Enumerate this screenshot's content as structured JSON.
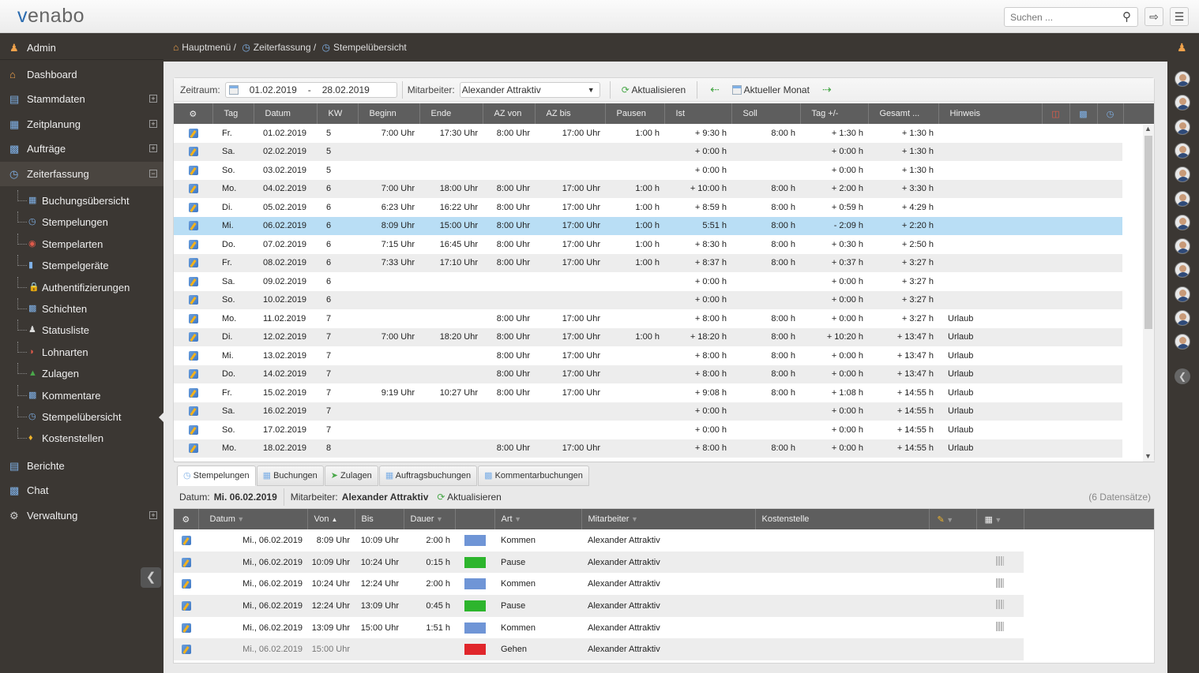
{
  "app": {
    "logo": "venabo",
    "search_placeholder": "Suchen ..."
  },
  "sidebar": {
    "user": "Admin",
    "items": [
      {
        "label": "Dashboard",
        "icon": "home-icon",
        "expandable": false
      },
      {
        "label": "Stammdaten",
        "icon": "database-icon",
        "expandable": true
      },
      {
        "label": "Zeitplanung",
        "icon": "calendar-icon",
        "expandable": true
      },
      {
        "label": "Aufträge",
        "icon": "orders-icon",
        "expandable": true
      },
      {
        "label": "Zeiterfassung",
        "icon": "clock-icon",
        "expandable": true,
        "expanded": true
      }
    ],
    "sub_items": [
      {
        "label": "Buchungsübersicht",
        "icon": "table-icon"
      },
      {
        "label": "Stempelungen",
        "icon": "clock-icon"
      },
      {
        "label": "Stempelarten",
        "icon": "stamp-icon"
      },
      {
        "label": "Stempelgeräte",
        "icon": "device-icon"
      },
      {
        "label": "Authentifizierungen",
        "icon": "lock-icon"
      },
      {
        "label": "Schichten",
        "icon": "shift-icon"
      },
      {
        "label": "Statusliste",
        "icon": "person-icon"
      },
      {
        "label": "Lohnarten",
        "icon": "wage-icon"
      },
      {
        "label": "Zulagen",
        "icon": "bonus-icon"
      },
      {
        "label": "Kommentare",
        "icon": "comment-icon"
      },
      {
        "label": "Stempelübersicht",
        "icon": "clock-icon",
        "active": true
      },
      {
        "label": "Kostenstellen",
        "icon": "cost-center-icon"
      }
    ],
    "bottom_items": [
      {
        "label": "Berichte",
        "icon": "report-icon",
        "expandable": false
      },
      {
        "label": "Chat",
        "icon": "chat-icon",
        "expandable": false
      },
      {
        "label": "Verwaltung",
        "icon": "gear-icon",
        "expandable": true
      }
    ]
  },
  "breadcrumb": [
    "Hauptmenü /",
    "Zeiterfassung /",
    "Stempelübersicht"
  ],
  "toolbar": {
    "period_label": "Zeitraum:",
    "date_from": "01.02.2019",
    "date_sep": "-",
    "date_to": "28.02.2019",
    "employee_label": "Mitarbeiter:",
    "employee": "Alexander Attraktiv",
    "refresh": "Aktualisieren",
    "current_month": "Aktueller Monat"
  },
  "main_table": {
    "columns": [
      "Tag",
      "Datum",
      "KW",
      "Beginn",
      "Ende",
      "AZ von",
      "AZ bis",
      "Pausen",
      "Ist",
      "Soll",
      "Tag +/-",
      "Gesamt ...",
      "Hinweis"
    ],
    "rows": [
      [
        "Fr.",
        "01.02.2019",
        "5",
        "7:00 Uhr",
        "17:30 Uhr",
        "8:00 Uhr",
        "17:00 Uhr",
        "1:00 h",
        "+ 9:30 h",
        "8:00 h",
        "+ 1:30 h",
        "+ 1:30 h",
        ""
      ],
      [
        "Sa.",
        "02.02.2019",
        "5",
        "",
        "",
        "",
        "",
        "",
        "+ 0:00 h",
        "",
        "+ 0:00 h",
        "+ 1:30 h",
        ""
      ],
      [
        "So.",
        "03.02.2019",
        "5",
        "",
        "",
        "",
        "",
        "",
        "+ 0:00 h",
        "",
        "+ 0:00 h",
        "+ 1:30 h",
        ""
      ],
      [
        "Mo.",
        "04.02.2019",
        "6",
        "7:00 Uhr",
        "18:00 Uhr",
        "8:00 Uhr",
        "17:00 Uhr",
        "1:00 h",
        "+ 10:00 h",
        "8:00 h",
        "+ 2:00 h",
        "+ 3:30 h",
        ""
      ],
      [
        "Di.",
        "05.02.2019",
        "6",
        "6:23 Uhr",
        "16:22 Uhr",
        "8:00 Uhr",
        "17:00 Uhr",
        "1:00 h",
        "+ 8:59 h",
        "8:00 h",
        "+ 0:59 h",
        "+ 4:29 h",
        ""
      ],
      [
        "Mi.",
        "06.02.2019",
        "6",
        "8:09 Uhr",
        "15:00 Uhr",
        "8:00 Uhr",
        "17:00 Uhr",
        "1:00 h",
        "5:51 h",
        "8:00 h",
        "- 2:09 h",
        "+ 2:20 h",
        ""
      ],
      [
        "Do.",
        "07.02.2019",
        "6",
        "7:15 Uhr",
        "16:45 Uhr",
        "8:00 Uhr",
        "17:00 Uhr",
        "1:00 h",
        "+ 8:30 h",
        "8:00 h",
        "+ 0:30 h",
        "+ 2:50 h",
        ""
      ],
      [
        "Fr.",
        "08.02.2019",
        "6",
        "7:33 Uhr",
        "17:10 Uhr",
        "8:00 Uhr",
        "17:00 Uhr",
        "1:00 h",
        "+ 8:37 h",
        "8:00 h",
        "+ 0:37 h",
        "+ 3:27 h",
        ""
      ],
      [
        "Sa.",
        "09.02.2019",
        "6",
        "",
        "",
        "",
        "",
        "",
        "+ 0:00 h",
        "",
        "+ 0:00 h",
        "+ 3:27 h",
        ""
      ],
      [
        "So.",
        "10.02.2019",
        "6",
        "",
        "",
        "",
        "",
        "",
        "+ 0:00 h",
        "",
        "+ 0:00 h",
        "+ 3:27 h",
        ""
      ],
      [
        "Mo.",
        "11.02.2019",
        "7",
        "",
        "",
        "8:00 Uhr",
        "17:00 Uhr",
        "",
        "+ 8:00 h",
        "8:00 h",
        "+ 0:00 h",
        "+ 3:27 h",
        "Urlaub"
      ],
      [
        "Di.",
        "12.02.2019",
        "7",
        "7:00 Uhr",
        "18:20 Uhr",
        "8:00 Uhr",
        "17:00 Uhr",
        "1:00 h",
        "+ 18:20 h",
        "8:00 h",
        "+ 10:20 h",
        "+ 13:47 h",
        "Urlaub"
      ],
      [
        "Mi.",
        "13.02.2019",
        "7",
        "",
        "",
        "8:00 Uhr",
        "17:00 Uhr",
        "",
        "+ 8:00 h",
        "8:00 h",
        "+ 0:00 h",
        "+ 13:47 h",
        "Urlaub"
      ],
      [
        "Do.",
        "14.02.2019",
        "7",
        "",
        "",
        "8:00 Uhr",
        "17:00 Uhr",
        "",
        "+ 8:00 h",
        "8:00 h",
        "+ 0:00 h",
        "+ 13:47 h",
        "Urlaub"
      ],
      [
        "Fr.",
        "15.02.2019",
        "7",
        "9:19 Uhr",
        "10:27 Uhr",
        "8:00 Uhr",
        "17:00 Uhr",
        "",
        "+ 9:08 h",
        "8:00 h",
        "+ 1:08 h",
        "+ 14:55 h",
        "Urlaub"
      ],
      [
        "Sa.",
        "16.02.2019",
        "7",
        "",
        "",
        "",
        "",
        "",
        "+ 0:00 h",
        "",
        "+ 0:00 h",
        "+ 14:55 h",
        "Urlaub"
      ],
      [
        "So.",
        "17.02.2019",
        "7",
        "",
        "",
        "",
        "",
        "",
        "+ 0:00 h",
        "",
        "+ 0:00 h",
        "+ 14:55 h",
        "Urlaub"
      ],
      [
        "Mo.",
        "18.02.2019",
        "8",
        "",
        "",
        "8:00 Uhr",
        "17:00 Uhr",
        "",
        "+ 8:00 h",
        "8:00 h",
        "+ 0:00 h",
        "+ 14:55 h",
        "Urlaub"
      ]
    ],
    "selected_row": 5
  },
  "tabs": [
    "Stempelungen",
    "Buchungen",
    "Zulagen",
    "Auftragsbuchungen",
    "Kommentarbuchungen"
  ],
  "active_tab": 0,
  "detail": {
    "date_label": "Datum:",
    "date": "Mi. 06.02.2019",
    "employee_label": "Mitarbeiter:",
    "employee": "Alexander Attraktiv",
    "refresh": "Aktualisieren",
    "record_count": "(6 Datensätze)",
    "columns": [
      "Datum",
      "Von",
      "Bis",
      "Dauer",
      "Art",
      "Mitarbeiter",
      "Kostenstelle"
    ],
    "rows": [
      {
        "datum": "Mi., 06.02.2019",
        "von": "8:09 Uhr",
        "bis": "10:09 Uhr",
        "dauer": "2:00 h",
        "color": "#6f95d6",
        "art": "Kommen",
        "mitarbeiter": "Alexander Attraktiv",
        "cost_icon": false
      },
      {
        "datum": "Mi., 06.02.2019",
        "von": "10:09 Uhr",
        "bis": "10:24 Uhr",
        "dauer": "0:15 h",
        "color": "#2db52d",
        "art": "Pause",
        "mitarbeiter": "Alexander Attraktiv",
        "cost_icon": true
      },
      {
        "datum": "Mi., 06.02.2019",
        "von": "10:24 Uhr",
        "bis": "12:24 Uhr",
        "dauer": "2:00 h",
        "color": "#6f95d6",
        "art": "Kommen",
        "mitarbeiter": "Alexander Attraktiv",
        "cost_icon": true
      },
      {
        "datum": "Mi., 06.02.2019",
        "von": "12:24 Uhr",
        "bis": "13:09 Uhr",
        "dauer": "0:45 h",
        "color": "#2db52d",
        "art": "Pause",
        "mitarbeiter": "Alexander Attraktiv",
        "cost_icon": true
      },
      {
        "datum": "Mi., 06.02.2019",
        "von": "13:09 Uhr",
        "bis": "15:00 Uhr",
        "dauer": "1:51 h",
        "color": "#6f95d6",
        "art": "Kommen",
        "mitarbeiter": "Alexander Attraktiv",
        "cost_icon": true
      },
      {
        "datum": "Mi., 06.02.2019",
        "von": "15:00 Uhr",
        "bis": "",
        "dauer": "",
        "color": "#e0262b",
        "art": "Gehen",
        "mitarbeiter": "Alexander Attraktiv",
        "cost_icon": false
      }
    ]
  },
  "colors": {
    "positive": "#1f9a1f",
    "negative": "#e2282d",
    "selected_row": "#b9def5",
    "sidebar": "#3b3733"
  },
  "right_rail": {
    "avatar_count": 12
  }
}
